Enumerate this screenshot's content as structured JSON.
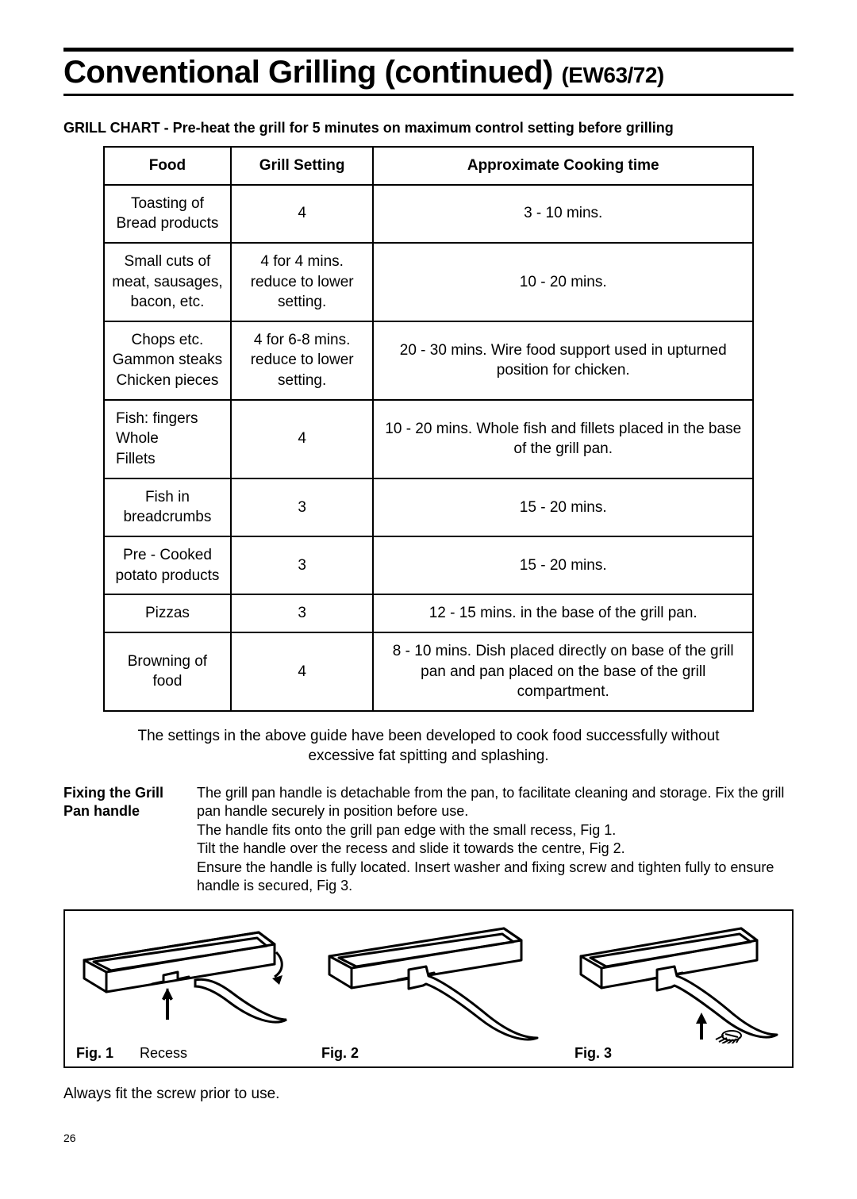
{
  "title_main": "Conventional Grilling (continued)",
  "title_model": "(EW63/72)",
  "chart_heading": "GRILL CHART  -  Pre-heat the grill for 5 minutes on maximum control setting before grilling",
  "table": {
    "headers": [
      "Food",
      "Grill Setting",
      "Approximate Cooking time"
    ],
    "rows": [
      {
        "food": "Toasting of\nBread products",
        "setting": "4",
        "time": "3 - 10 mins."
      },
      {
        "food": "Small cuts of\nmeat, sausages,\nbacon, etc.",
        "setting": "4 for 4 mins.\nreduce to lower\nsetting.",
        "time": "10 - 20 mins."
      },
      {
        "food": "Chops etc.\nGammon steaks\nChicken pieces",
        "setting": "4 for 6-8 mins.\nreduce to lower\nsetting.",
        "time": "20 - 30 mins. Wire food support used in upturned position for chicken."
      },
      {
        "food": "Fish:   fingers\n          Whole\n          Fillets",
        "setting": "4",
        "time": "10 - 20 mins. Whole fish and fillets placed in the base of the grill pan.",
        "fish": true
      },
      {
        "food": "Fish in\nbreadcrumbs",
        "setting": "3",
        "time": "15 - 20 mins."
      },
      {
        "food": "Pre - Cooked\npotato products",
        "setting": "3",
        "time": "15 - 20 mins."
      },
      {
        "food": "Pizzas",
        "setting": "3",
        "time": "12 - 15 mins. in the base of the grill pan."
      },
      {
        "food": "Browning of\nfood",
        "setting": "4",
        "time": "8 - 10 mins. Dish placed directly on base of the grill pan and pan placed on the base of the grill compartment."
      }
    ]
  },
  "table_note": "The settings in the above guide have been developed to cook food successfully without excessive fat spitting and splashing.",
  "handle": {
    "label": "Fixing the Grill Pan handle",
    "text": "The grill pan handle is detachable from the pan, to facilitate cleaning and storage. Fix the grill pan handle securely in position before use.\nThe handle fits onto the grill pan edge with the small recess, Fig 1.\nTilt the handle over the recess and slide it towards the centre, Fig 2.\nEnsure the handle is fully located.  Insert washer and fixing screw and tighten fully to ensure handle is secured, Fig 3."
  },
  "figures": {
    "fig1_label": "Fig. 1",
    "fig1_recess": "Recess",
    "fig2_label": "Fig. 2",
    "fig3_label": "Fig. 3"
  },
  "bottom_note": "Always fit the screw prior to use.",
  "page_number": "26"
}
